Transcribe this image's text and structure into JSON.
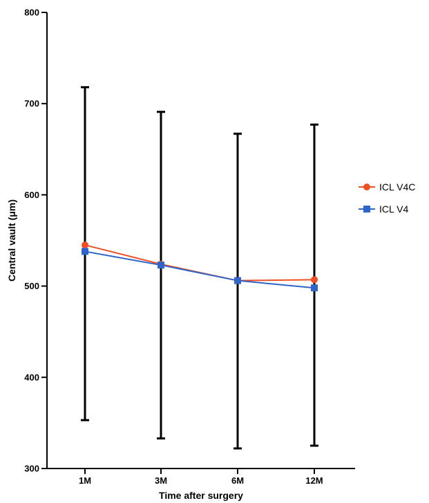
{
  "chart_data": {
    "type": "line",
    "categories": [
      "1M",
      "3M",
      "6M",
      "12M"
    ],
    "xlabel": "Time after surgery",
    "ylabel": "Central vault (μm)",
    "ylim": [
      300,
      800
    ],
    "yticks": [
      300,
      400,
      500,
      600,
      700,
      800
    ],
    "grid": false,
    "legend_position": "right",
    "series": [
      {
        "name": "ICL V4C",
        "values": [
          545,
          524,
          506,
          507
        ],
        "color": "#f04e23",
        "marker": "circle"
      },
      {
        "name": "ICL V4",
        "values": [
          538,
          523,
          506,
          498
        ],
        "color": "#2f64c8",
        "marker": "square"
      }
    ],
    "error_bars": [
      {
        "low": 353,
        "high": 718
      },
      {
        "low": 333,
        "high": 691
      },
      {
        "low": 322,
        "high": 667
      },
      {
        "low": 325,
        "high": 677
      }
    ]
  }
}
